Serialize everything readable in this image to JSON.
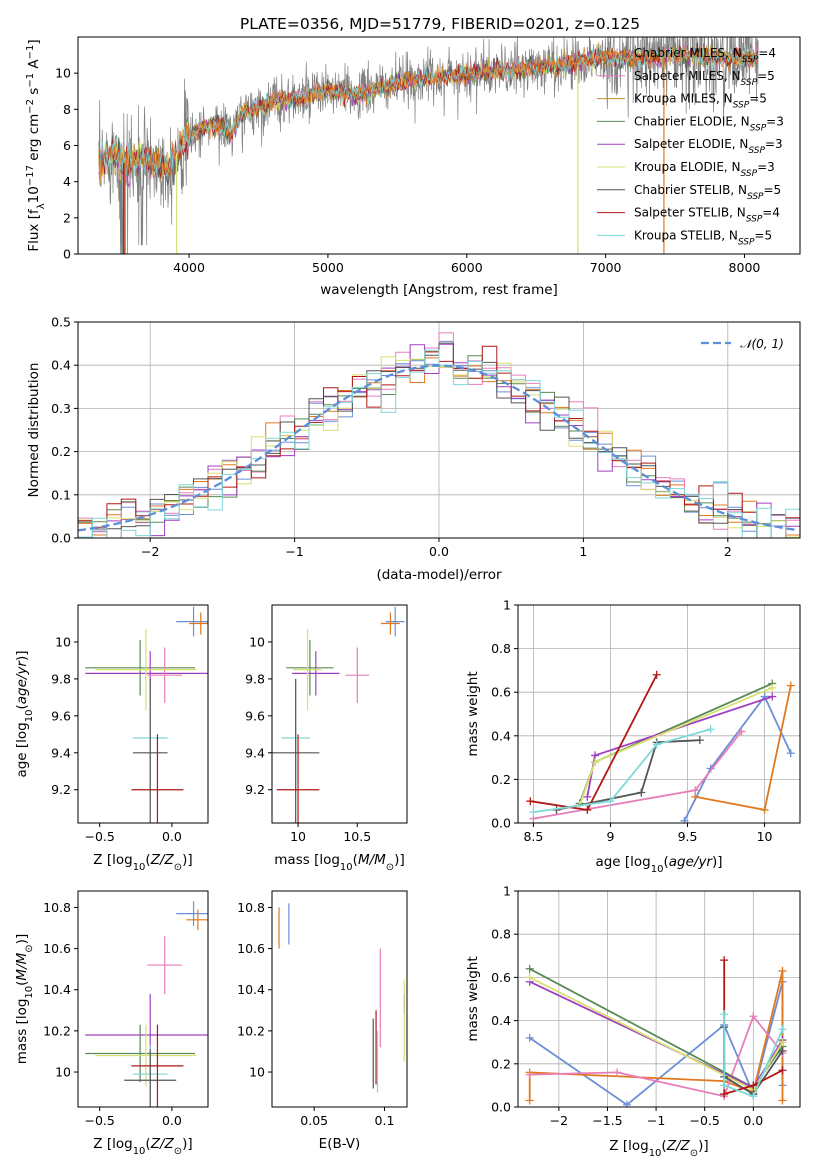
{
  "title": "PLATE=0356, MJD=51779, FIBERID=0201, z=0.125",
  "colors": {
    "Chabrier MILES": "#6b8fd8",
    "Salpeter MILES": "#e87dbc",
    "Kroupa MILES": "#b8902a",
    "Chabrier ELODIE": "#5a8a55",
    "Salpeter ELODIE": "#a040c0",
    "Kroupa ELODIE": "#d8e070",
    "Chabrier STELIB": "#555555",
    "Salpeter STELIB": "#b01818",
    "Kroupa STELIB": "#7ed8d8",
    "Orange": "#e07820",
    "Olive": "#b0c030",
    "Data": "#808080"
  },
  "chart_data": [
    {
      "type": "line",
      "id": "spectrum",
      "xlabel": "wavelength [Angstrom, rest frame]",
      "ylabel": "Flux [f_λ10^-17 erg cm^-2 s^-1 A^-1]",
      "xlim": [
        3200,
        8400
      ],
      "ylim": [
        0,
        12
      ],
      "xticks": [
        4000,
        5000,
        6000,
        7000,
        8000
      ],
      "yticks": [
        0,
        2,
        4,
        6,
        8,
        10
      ],
      "legend_position": "top-right",
      "legend": [
        {
          "label": "Chabrier MILES, N",
          "sub": "SSP",
          "suffix": "=4",
          "color": "#e07820"
        },
        {
          "label": "Salpeter MILES, N",
          "sub": "SSP",
          "suffix": "=5",
          "color": "#e87dbc"
        },
        {
          "label": "Kroupa MILES, N",
          "sub": "SSP",
          "suffix": "=5",
          "color": "#b8902a"
        },
        {
          "label": "Chabrier ELODIE, N",
          "sub": "SSP",
          "suffix": "=3",
          "color": "#5a8a55"
        },
        {
          "label": "Salpeter ELODIE, N",
          "sub": "SSP",
          "suffix": "=3",
          "color": "#a040c0"
        },
        {
          "label": "Kroupa ELODIE, N",
          "sub": "SSP",
          "suffix": "=3",
          "color": "#d8e070"
        },
        {
          "label": "Chabrier STELIB, N",
          "sub": "SSP",
          "suffix": "=5",
          "color": "#555555"
        },
        {
          "label": "Salpeter STELIB, N",
          "sub": "SSP",
          "suffix": "=4",
          "color": "#b01818"
        },
        {
          "label": "Kroupa STELIB, N",
          "sub": "SSP",
          "suffix": "=5",
          "color": "#7ed8d8"
        }
      ],
      "continuum": [
        [
          3350,
          4.9
        ],
        [
          3450,
          5.6
        ],
        [
          3550,
          4.9
        ],
        [
          3650,
          5.3
        ],
        [
          3750,
          5.0
        ],
        [
          3850,
          4.8
        ],
        [
          3950,
          6.1
        ],
        [
          4050,
          6.8
        ],
        [
          4200,
          7.2
        ],
        [
          4300,
          6.7
        ],
        [
          4400,
          7.8
        ],
        [
          4600,
          8.4
        ],
        [
          4800,
          8.6
        ],
        [
          5000,
          9.0
        ],
        [
          5200,
          8.8
        ],
        [
          5400,
          9.2
        ],
        [
          5600,
          9.6
        ],
        [
          5800,
          9.8
        ],
        [
          6000,
          10.0
        ],
        [
          6200,
          10.1
        ],
        [
          6400,
          10.2
        ],
        [
          6600,
          10.4
        ],
        [
          6800,
          10.6
        ],
        [
          7000,
          10.9
        ],
        [
          7200,
          10.8
        ],
        [
          7400,
          10.9
        ],
        [
          7600,
          11.0
        ],
        [
          7800,
          10.9
        ],
        [
          8000,
          10.8
        ],
        [
          8100,
          10.9
        ]
      ],
      "data_range": [
        3350,
        8100
      ]
    },
    {
      "type": "area",
      "id": "residual-histograms",
      "xlabel": "(data-model)/error",
      "ylabel": "Normed distribution",
      "xlim": [
        -2.5,
        2.5
      ],
      "ylim": [
        0,
        0.5
      ],
      "xticks": [
        -2,
        -1,
        0,
        1,
        2
      ],
      "yticks": [
        0.0,
        0.1,
        0.2,
        0.3,
        0.4,
        0.5
      ],
      "grid": true,
      "legend": "𝒩(0, 1)",
      "legend_position": "top-right",
      "gaussian": {
        "mu": 0,
        "sigma": 1,
        "color": "#5b8fd9"
      },
      "bin_width": 0.1
    },
    {
      "type": "scatter",
      "id": "age-vs-Z",
      "xlabel": "Z [log10(Z/Z⊙)]",
      "ylabel": "age  [log10(age/yr)]",
      "xlim": [
        -0.65,
        0.25
      ],
      "ylim": [
        9.02,
        10.2
      ],
      "xticks": [
        -0.5,
        0.0
      ],
      "yticks": [
        9.2,
        9.4,
        9.6,
        9.8,
        10.0
      ],
      "points": [
        {
          "x": 0.15,
          "y": 10.11,
          "xe": 0.12,
          "ye": 0.08,
          "c": "#6b8fd8"
        },
        {
          "x": 0.2,
          "y": 10.1,
          "xe": 0.08,
          "ye": 0.06,
          "c": "#e07820"
        },
        {
          "x": -0.22,
          "y": 9.86,
          "xe": 0.38,
          "ye": 0.15,
          "c": "#5a8a55"
        },
        {
          "x": -0.15,
          "y": 9.83,
          "xe": 0.45,
          "ye": 0.12,
          "c": "#a040c0"
        },
        {
          "x": -0.05,
          "y": 9.82,
          "xe": 0.12,
          "ye": 0.15,
          "c": "#e87dbc"
        },
        {
          "x": -0.18,
          "y": 9.85,
          "xe": 0.35,
          "ye": 0.22,
          "c": "#d8e070"
        },
        {
          "x": -0.15,
          "y": 9.48,
          "xe": 0.12,
          "ye": 0.3,
          "c": "#7ed8d8"
        },
        {
          "x": -0.15,
          "y": 9.4,
          "xe": 0.12,
          "ye": 0.4,
          "c": "#555555"
        },
        {
          "x": -0.1,
          "y": 9.2,
          "xe": 0.18,
          "ye": 0.3,
          "c": "#b01818"
        }
      ]
    },
    {
      "type": "scatter",
      "id": "age-vs-mass",
      "xlabel": "mass [log10(M/M⊙)]",
      "ylabel": "",
      "xlim": [
        9.78,
        10.92
      ],
      "ylim": [
        9.02,
        10.2
      ],
      "xticks": [
        10.0,
        10.5
      ],
      "yticks": [
        9.2,
        9.4,
        9.6,
        9.8,
        10.0
      ],
      "points": [
        {
          "x": 10.82,
          "y": 10.11,
          "xe": 0.08,
          "ye": 0.08,
          "c": "#6b8fd8"
        },
        {
          "x": 10.78,
          "y": 10.1,
          "xe": 0.08,
          "ye": 0.06,
          "c": "#e07820"
        },
        {
          "x": 10.1,
          "y": 9.86,
          "xe": 0.2,
          "ye": 0.15,
          "c": "#5a8a55"
        },
        {
          "x": 10.15,
          "y": 9.83,
          "xe": 0.2,
          "ye": 0.12,
          "c": "#a040c0"
        },
        {
          "x": 10.5,
          "y": 9.82,
          "xe": 0.1,
          "ye": 0.15,
          "c": "#e87dbc"
        },
        {
          "x": 10.08,
          "y": 9.85,
          "xe": 0.12,
          "ye": 0.22,
          "c": "#d8e070"
        },
        {
          "x": 9.98,
          "y": 9.48,
          "xe": 0.12,
          "ye": 0.3,
          "c": "#7ed8d8"
        },
        {
          "x": 9.98,
          "y": 9.4,
          "xe": 0.2,
          "ye": 0.4,
          "c": "#555555"
        },
        {
          "x": 10.0,
          "y": 9.2,
          "xe": 0.18,
          "ye": 0.3,
          "c": "#b01818"
        }
      ]
    },
    {
      "type": "line",
      "id": "mass-weight-vs-age",
      "xlabel": "age  [log10(age/yr)]",
      "ylabel": "mass weight",
      "xlim": [
        8.4,
        10.23
      ],
      "ylim": [
        0,
        1
      ],
      "xticks": [
        8.5,
        9.0,
        9.5,
        10.0
      ],
      "yticks": [
        0.0,
        0.2,
        0.4,
        0.6,
        0.8,
        1.0
      ],
      "grid": true,
      "series": [
        {
          "c": "#6b8fd8",
          "pts": [
            [
              9.48,
              0.01
            ],
            [
              9.65,
              0.25
            ],
            [
              10.0,
              0.58
            ],
            [
              10.17,
              0.32
            ]
          ]
        },
        {
          "c": "#e07820",
          "pts": [
            [
              9.55,
              0.12
            ],
            [
              10.0,
              0.06
            ],
            [
              10.17,
              0.63
            ]
          ]
        },
        {
          "c": "#e87dbc",
          "pts": [
            [
              8.5,
              0.02
            ],
            [
              9.55,
              0.15
            ],
            [
              9.85,
              0.42
            ]
          ]
        },
        {
          "c": "#5a8a55",
          "pts": [
            [
              8.8,
              0.09
            ],
            [
              8.9,
              0.28
            ],
            [
              10.05,
              0.64
            ]
          ]
        },
        {
          "c": "#a040c0",
          "pts": [
            [
              8.85,
              0.12
            ],
            [
              8.9,
              0.31
            ],
            [
              10.05,
              0.58
            ]
          ]
        },
        {
          "c": "#d8e070",
          "pts": [
            [
              8.8,
              0.08
            ],
            [
              8.9,
              0.28
            ],
            [
              10.05,
              0.62
            ]
          ]
        },
        {
          "c": "#555555",
          "pts": [
            [
              8.65,
              0.06
            ],
            [
              9.2,
              0.14
            ],
            [
              9.3,
              0.37
            ],
            [
              9.58,
              0.38
            ]
          ]
        },
        {
          "c": "#b01818",
          "pts": [
            [
              8.48,
              0.1
            ],
            [
              8.85,
              0.06
            ],
            [
              9.3,
              0.68
            ]
          ]
        },
        {
          "c": "#7ed8d8",
          "pts": [
            [
              8.5,
              0.05
            ],
            [
              9.0,
              0.1
            ],
            [
              9.3,
              0.36
            ],
            [
              9.65,
              0.43
            ]
          ]
        }
      ]
    },
    {
      "type": "scatter",
      "id": "mass-vs-Z",
      "xlabel": "Z [log10(Z/Z⊙)]",
      "ylabel": "mass [log10(M/M⊙)]",
      "xlim": [
        -0.65,
        0.25
      ],
      "ylim": [
        9.83,
        10.88
      ],
      "xticks": [
        -0.5,
        0.0
      ],
      "yticks": [
        10.0,
        10.2,
        10.4,
        10.6,
        10.8
      ],
      "points": [
        {
          "x": 0.15,
          "y": 10.77,
          "xe": 0.12,
          "ye": 0.06,
          "c": "#6b8fd8"
        },
        {
          "x": 0.18,
          "y": 10.74,
          "xe": 0.08,
          "ye": 0.05,
          "c": "#e07820"
        },
        {
          "x": -0.05,
          "y": 10.52,
          "xe": 0.12,
          "ye": 0.14,
          "c": "#e87dbc"
        },
        {
          "x": -0.22,
          "y": 10.09,
          "xe": 0.38,
          "ye": 0.14,
          "c": "#5a8a55"
        },
        {
          "x": -0.15,
          "y": 10.18,
          "xe": 0.45,
          "ye": 0.2,
          "c": "#a040c0"
        },
        {
          "x": -0.18,
          "y": 10.08,
          "xe": 0.35,
          "ye": 0.15,
          "c": "#d8e070"
        },
        {
          "x": -0.15,
          "y": 9.99,
          "xe": 0.12,
          "ye": 0.14,
          "c": "#7ed8d8"
        },
        {
          "x": -0.15,
          "y": 9.96,
          "xe": 0.18,
          "ye": 0.15,
          "c": "#555555"
        },
        {
          "x": -0.1,
          "y": 10.03,
          "xe": 0.18,
          "ye": 0.2,
          "c": "#b01818"
        }
      ]
    },
    {
      "type": "scatter",
      "id": "mass-vs-ebv",
      "xlabel": "E(B-V)",
      "ylabel": "",
      "xlim": [
        0.02,
        0.116
      ],
      "ylim": [
        9.83,
        10.88
      ],
      "xticks": [
        0.05,
        0.1
      ],
      "yticks": [
        10.0,
        10.2,
        10.4,
        10.6,
        10.8
      ],
      "points": [
        {
          "x": 0.025,
          "y": 10.7,
          "ye": 0.1,
          "c": "#e07820"
        },
        {
          "x": 0.032,
          "y": 10.72,
          "ye": 0.1,
          "c": "#6b8fd8"
        },
        {
          "x": 0.092,
          "y": 10.09,
          "ye": 0.17,
          "c": "#555555"
        },
        {
          "x": 0.094,
          "y": 10.12,
          "ye": 0.18,
          "c": "#b01818"
        },
        {
          "x": 0.095,
          "y": 10.05,
          "ye": 0.15,
          "c": "#7ed8d8"
        },
        {
          "x": 0.097,
          "y": 10.36,
          "ye": 0.24,
          "c": "#e87dbc"
        },
        {
          "x": 0.114,
          "y": 10.33,
          "ye": 0.05,
          "c": "#a040c0"
        },
        {
          "x": 0.114,
          "y": 10.25,
          "ye": 0.2,
          "c": "#d8e070"
        }
      ]
    },
    {
      "type": "line",
      "id": "mass-weight-vs-Z",
      "xlabel": "Z [log10(Z/Z⊙)]",
      "ylabel": "mass weight",
      "xlim": [
        -2.42,
        0.48
      ],
      "ylim": [
        0,
        1
      ],
      "xticks": [
        -2.0,
        -1.5,
        -1.0,
        -0.5,
        0.0
      ],
      "yticks": [
        0.0,
        0.2,
        0.4,
        0.6,
        0.8,
        1.0
      ],
      "grid": true,
      "series": [
        {
          "c": "#6b8fd8",
          "pts": [
            [
              -2.3,
              0.32
            ],
            [
              -1.3,
              0.01
            ],
            [
              -0.3,
              0.38
            ],
            [
              0.0,
              0.06
            ],
            [
              0.3,
              0.58
            ],
            [
              0.3,
              0.1
            ]
          ]
        },
        {
          "c": "#e07820",
          "pts": [
            [
              -2.3,
              0.03
            ],
            [
              -2.3,
              0.16
            ],
            [
              -0.3,
              0.12
            ],
            [
              0.0,
              0.07
            ],
            [
              0.3,
              0.63
            ],
            [
              0.3,
              0.03
            ]
          ]
        },
        {
          "c": "#e87dbc",
          "pts": [
            [
              -2.3,
              0.15
            ],
            [
              -1.4,
              0.16
            ],
            [
              -0.3,
              0.05
            ],
            [
              0.0,
              0.42
            ],
            [
              0.3,
              0.25
            ]
          ]
        },
        {
          "c": "#5a8a55",
          "pts": [
            [
              -2.3,
              0.64
            ],
            [
              0.0,
              0.09
            ],
            [
              0.3,
              0.28
            ]
          ]
        },
        {
          "c": "#a040c0",
          "pts": [
            [
              -2.3,
              0.58
            ],
            [
              0.0,
              0.09
            ],
            [
              0.3,
              0.31
            ]
          ]
        },
        {
          "c": "#d8e070",
          "pts": [
            [
              -2.3,
              0.6
            ],
            [
              0.0,
              0.08
            ],
            [
              0.3,
              0.3
            ]
          ]
        },
        {
          "c": "#555555",
          "pts": [
            [
              -0.3,
              0.37
            ],
            [
              -0.3,
              0.14
            ],
            [
              0.0,
              0.06
            ],
            [
              0.3,
              0.26
            ]
          ]
        },
        {
          "c": "#b01818",
          "pts": [
            [
              -0.3,
              0.68
            ],
            [
              -0.3,
              0.06
            ],
            [
              0.0,
              0.1
            ],
            [
              0.3,
              0.17
            ]
          ]
        },
        {
          "c": "#7ed8d8",
          "pts": [
            [
              -0.3,
              0.43
            ],
            [
              -0.3,
              0.1
            ],
            [
              0.0,
              0.05
            ],
            [
              0.3,
              0.36
            ]
          ]
        }
      ]
    }
  ]
}
